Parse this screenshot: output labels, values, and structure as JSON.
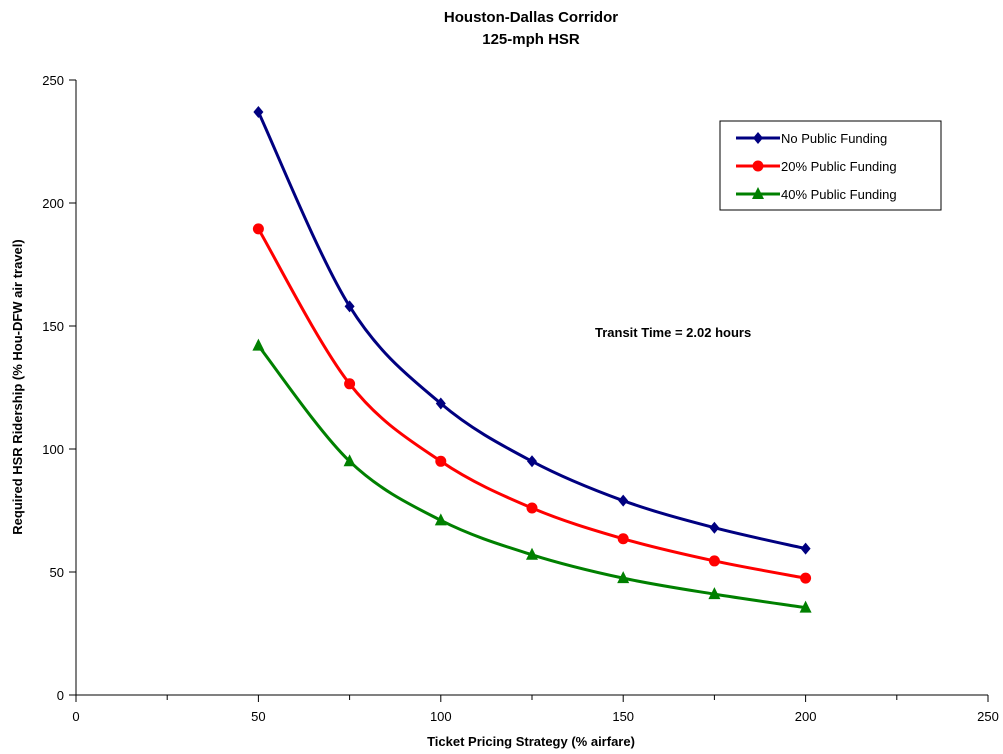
{
  "chart_data": {
    "type": "line",
    "title": "Houston-Dallas Corridor",
    "subtitle": "125-mph HSR",
    "xlabel": "Ticket Pricing Strategy (% airfare)",
    "ylabel": "Required HSR Ridership (% Hou-DFW air travel)",
    "xlim": [
      0,
      250
    ],
    "ylim": [
      0,
      250
    ],
    "xticks": [
      0,
      50,
      100,
      150,
      200,
      250
    ],
    "yticks": [
      0,
      50,
      100,
      150,
      200,
      250
    ],
    "grid": false,
    "legend_position": "top-right",
    "annotation": "Transit Time = 2.02 hours",
    "x": [
      50,
      75,
      100,
      125,
      150,
      175,
      200
    ],
    "series": [
      {
        "name": "No Public Funding",
        "marker": "diamond",
        "color": "#000080",
        "values": [
          237,
          158,
          118.5,
          95,
          79,
          68,
          59.5
        ]
      },
      {
        "name": "20% Public Funding",
        "marker": "circle",
        "color": "#ff0000",
        "values": [
          189.5,
          126.5,
          95,
          76,
          63.5,
          54.5,
          47.5
        ]
      },
      {
        "name": "40% Public Funding",
        "marker": "triangle",
        "color": "#008000",
        "values": [
          142,
          95,
          71,
          57,
          47.5,
          41,
          35.5
        ]
      }
    ]
  }
}
